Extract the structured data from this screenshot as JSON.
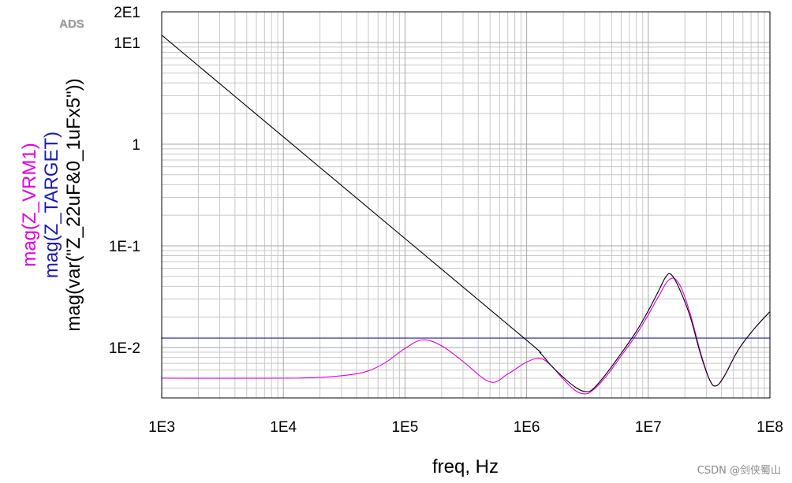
{
  "brand_label": "ADS",
  "watermark": "CSDN @剑侠蜀山",
  "chart_data": {
    "type": "line",
    "xlabel": "freq, Hz",
    "x_scale": "log",
    "y_scale": "log",
    "xlim": [
      1000,
      100000000
    ],
    "ylim": [
      0.0032,
      20
    ],
    "x_ticks": [
      {
        "value": 1000,
        "label": "1E3"
      },
      {
        "value": 10000,
        "label": "1E4"
      },
      {
        "value": 100000,
        "label": "1E5"
      },
      {
        "value": 1000000,
        "label": "1E6"
      },
      {
        "value": 10000000,
        "label": "1E7"
      },
      {
        "value": 100000000,
        "label": "1E8"
      }
    ],
    "y_ticks": [
      {
        "value": 0.01,
        "label": "1E-2"
      },
      {
        "value": 0.1,
        "label": "1E-1"
      },
      {
        "value": 1,
        "label": "1"
      },
      {
        "value": 10,
        "label": "1E1"
      },
      {
        "value": 20,
        "label": "2E1"
      }
    ],
    "grid": true,
    "series": [
      {
        "name": "mag(Z_VRM1)",
        "color": "#e000e0",
        "x": [
          1000,
          10000,
          20000,
          35000,
          50000,
          70000,
          100000,
          140000,
          200000,
          300000,
          500000,
          700000,
          1000000,
          1300000,
          1600000,
          2000000,
          2500000,
          3000000,
          3500000,
          4500000,
          6000000,
          8000000,
          10000000,
          12000000,
          15000000,
          18000000,
          22000000,
          27000000,
          32000000,
          36000000,
          42000000,
          55000000,
          75000000,
          100000000
        ],
        "y": [
          0.005,
          0.005,
          0.0051,
          0.0054,
          0.0059,
          0.0072,
          0.0098,
          0.0119,
          0.0104,
          0.0073,
          0.0046,
          0.0055,
          0.0072,
          0.0078,
          0.0066,
          0.0049,
          0.0038,
          0.0035,
          0.0038,
          0.0052,
          0.0083,
          0.0135,
          0.021,
          0.031,
          0.047,
          0.042,
          0.022,
          0.0088,
          0.0048,
          0.0042,
          0.0052,
          0.0095,
          0.0155,
          0.0225
        ]
      },
      {
        "name": "mag(Z_TARGET)",
        "color": "#1a1ab0",
        "x": [
          1000,
          100000000
        ],
        "y": [
          0.0124,
          0.0124
        ]
      },
      {
        "name": "mag(var(\"Z_22uF&0_1uFx5\"))",
        "color": "#000000",
        "x": [
          1000,
          10000,
          100000,
          1000000,
          1300000,
          1600000,
          2000000,
          2500000,
          3000000,
          3500000,
          4500000,
          6000000,
          8000000,
          10000000,
          12000000,
          14000000,
          15500000,
          18000000,
          22000000,
          27000000,
          32000000,
          36000000,
          42000000,
          55000000,
          75000000,
          100000000
        ],
        "y": [
          11.8,
          1.18,
          0.118,
          0.0118,
          0.0088,
          0.0066,
          0.0051,
          0.0041,
          0.0037,
          0.0039,
          0.0055,
          0.0088,
          0.0145,
          0.023,
          0.035,
          0.05,
          0.052,
          0.038,
          0.0205,
          0.0085,
          0.0048,
          0.0042,
          0.0052,
          0.0095,
          0.0155,
          0.0225
        ]
      }
    ]
  }
}
